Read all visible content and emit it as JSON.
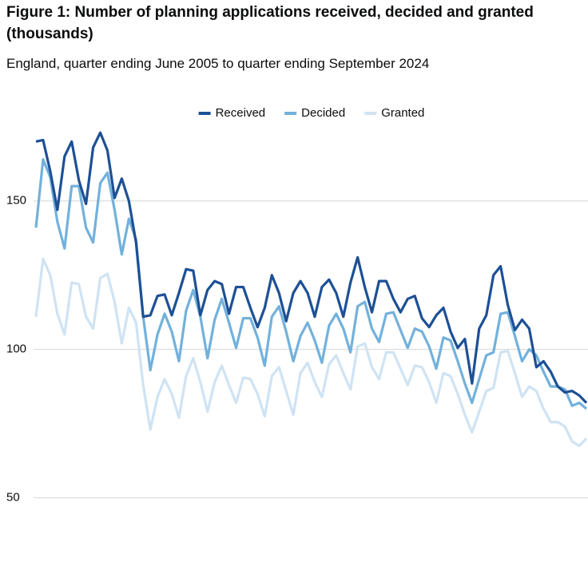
{
  "chart_data": {
    "type": "line",
    "title": "Figure 1: Number of planning applications received, decided and granted (thousands)",
    "subtitle": "England, quarter ending June 2005 to quarter ending September 2024",
    "categories": [
      null,
      null,
      null,
      null,
      null,
      null,
      null,
      null,
      null,
      null,
      null,
      null,
      null,
      null,
      null,
      null,
      null,
      null,
      null,
      null,
      null,
      null,
      null,
      null,
      null,
      null,
      null,
      null,
      null,
      null,
      null,
      null,
      null,
      null,
      null,
      null,
      null,
      null,
      null,
      null,
      null,
      null,
      null,
      null,
      null,
      null,
      null,
      null,
      null,
      null,
      null,
      null,
      null,
      null,
      null,
      null,
      null,
      null,
      null,
      null,
      null,
      null,
      null,
      null,
      null,
      null,
      null,
      null,
      null,
      null,
      null,
      null,
      null,
      null,
      null,
      null,
      null,
      null
    ],
    "series": [
      {
        "name": "Received",
        "color": "#1d5095",
        "values": [
          170,
          170.5,
          160,
          147,
          165,
          170,
          157,
          149,
          168,
          173,
          167,
          151,
          157.5,
          150,
          136,
          111,
          111.5,
          118,
          118.5,
          111.5,
          119,
          127,
          126.5,
          111.5,
          120,
          123,
          122,
          112,
          121,
          121,
          114,
          107.5,
          114,
          125,
          119,
          109.5,
          119,
          123,
          119,
          111,
          121,
          123.5,
          119,
          111,
          122.5,
          131,
          121,
          112.5,
          123,
          123,
          117,
          112.5,
          117,
          118,
          110.5,
          107.5,
          111.5,
          114,
          106,
          100.5,
          103.5,
          88.5,
          107,
          111.5,
          125,
          128,
          115,
          106.5,
          110,
          107,
          94,
          96,
          92.5,
          87.5,
          85.5,
          86,
          84.5,
          82
        ]
      },
      {
        "name": "Decided",
        "color": "#72b1dc",
        "values": [
          141,
          164,
          158,
          143,
          134,
          155,
          155,
          141,
          136,
          156,
          159.5,
          147,
          132,
          144,
          137,
          111,
          93,
          105,
          112,
          106,
          96,
          113,
          120,
          111,
          97,
          110,
          117,
          109,
          100.5,
          110.5,
          110.5,
          104,
          94.5,
          111,
          114.5,
          106,
          96,
          104.5,
          109,
          103,
          95.5,
          108,
          112,
          107,
          99,
          114.5,
          116,
          107,
          102.5,
          112,
          112.5,
          106.5,
          100.5,
          107,
          106,
          101,
          93.5,
          104,
          103,
          96,
          88.5,
          82,
          90,
          98,
          99,
          112,
          112.5,
          104.5,
          96,
          100,
          98,
          92.5,
          87.5,
          87.5,
          86.5,
          81,
          82,
          80
        ]
      },
      {
        "name": "Granted",
        "color": "#cfe3f3",
        "values": [
          111,
          130.5,
          125,
          112,
          105,
          122.5,
          122,
          111,
          107,
          124,
          125.5,
          116,
          102,
          114,
          109,
          88,
          73,
          84,
          90,
          85,
          77,
          91,
          97,
          89,
          79,
          89,
          94.5,
          88,
          82,
          90.5,
          90,
          85,
          77.5,
          91,
          94,
          86,
          78,
          92,
          95.5,
          89,
          84,
          95,
          98,
          92,
          86.5,
          101,
          102,
          94,
          90,
          99,
          99,
          93.5,
          88,
          94.5,
          94,
          89,
          82,
          92,
          91,
          85,
          78,
          72,
          79,
          86,
          87,
          99,
          99.5,
          92,
          84,
          87.5,
          86,
          80,
          75.5,
          75.5,
          74,
          69,
          67.5,
          70
        ]
      }
    ],
    "ylim": [
      30,
      176
    ],
    "yticks": [
      50,
      100,
      150
    ],
    "grid": true
  }
}
